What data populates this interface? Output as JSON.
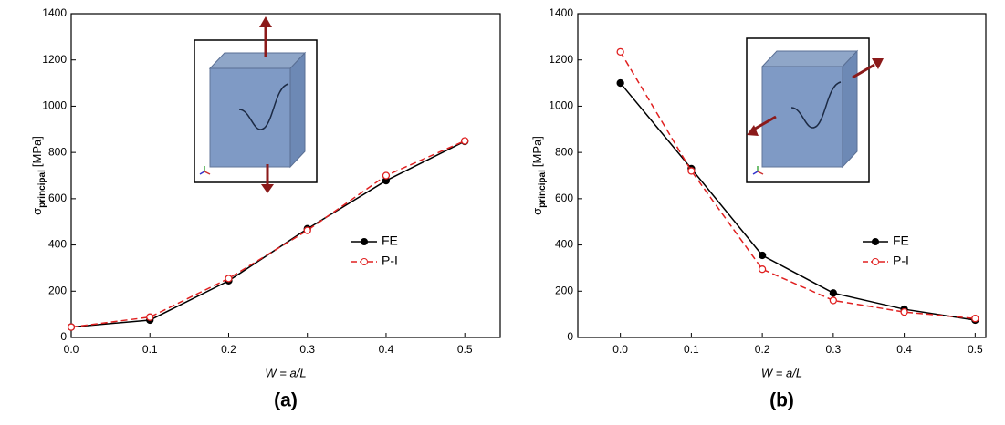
{
  "chart_data": [
    {
      "type": "line",
      "caption": "(a)",
      "xlabel": "W = a/L",
      "ylabel": {
        "symbol": "σ",
        "subscript": "principal",
        "unit": "[MPa]"
      },
      "x": [
        0,
        0.1,
        0.2,
        0.3,
        0.4,
        0.5
      ],
      "series": [
        {
          "name": "FE",
          "color": "#000000",
          "values": [
            45,
            75,
            245,
            470,
            678,
            848
          ]
        },
        {
          "name": "P-I",
          "color": "#e02020",
          "values": [
            45,
            88,
            255,
            463,
            700,
            850
          ]
        }
      ],
      "xlim": [
        0,
        0.545
      ],
      "ylim": [
        0,
        1400
      ],
      "xticks": [
        {
          "value": 0,
          "label": "0.0"
        },
        0.1,
        0.2,
        0.3,
        0.4,
        0.5
      ],
      "yticks": [
        0,
        200,
        400,
        600,
        800,
        1000,
        1200,
        1400
      ]
    },
    {
      "type": "line",
      "caption": "(b)",
      "xlabel": "W = a/L",
      "ylabel": {
        "symbol": "σ",
        "subscript": "principal",
        "unit": "[MPa]"
      },
      "x": [
        0,
        0.1,
        0.2,
        0.3,
        0.4,
        0.5
      ],
      "series": [
        {
          "name": "FE",
          "color": "#000000",
          "values": [
            1100,
            730,
            355,
            192,
            122,
            75
          ]
        },
        {
          "name": "P-I",
          "color": "#e02020",
          "values": [
            1235,
            720,
            295,
            160,
            110,
            82
          ]
        }
      ],
      "xlim": [
        -0.06,
        0.515
      ],
      "ylim": [
        0,
        1400
      ],
      "xticks": [
        {
          "value": 0,
          "label": "0.0"
        },
        0.1,
        0.2,
        0.3,
        0.4,
        0.5
      ],
      "yticks": [
        0,
        200,
        400,
        600,
        800,
        1000,
        1200,
        1400
      ]
    }
  ]
}
